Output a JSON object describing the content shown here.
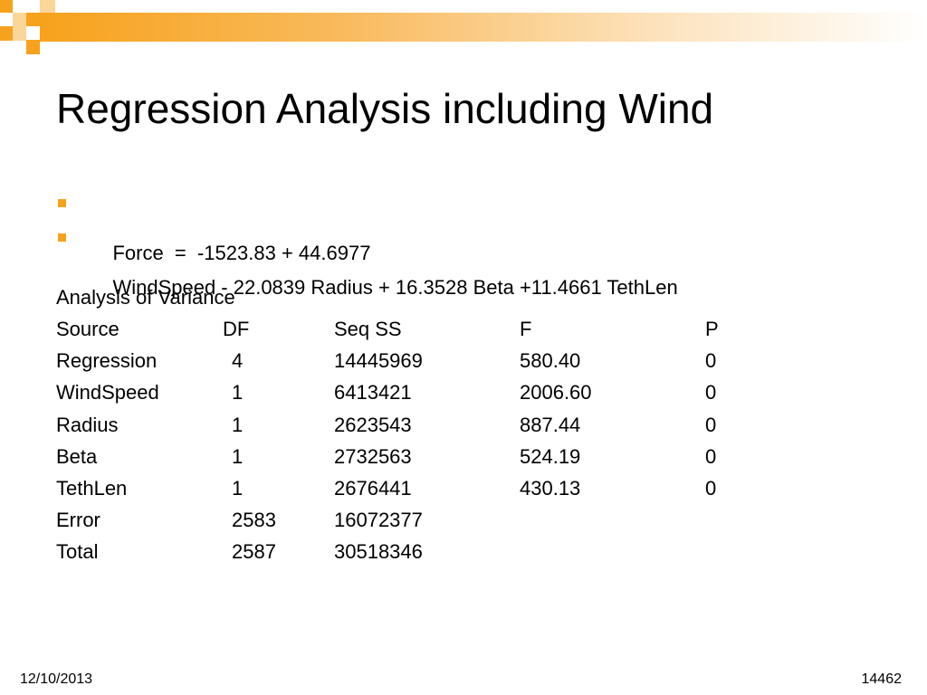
{
  "slide": {
    "title": "Regression Analysis including Wind",
    "bullets": [
      "Force  =  -1523.83 + 44.6977",
      "WindSpeed - 22.0839 Radius + 16.3528 Beta +11.4661 TethLen"
    ],
    "anova": {
      "heading": "Analysis of Variance",
      "columns": [
        "Source",
        "DF",
        "Seq SS",
        "F",
        "P"
      ],
      "rows": [
        [
          "Regression",
          "4",
          "14445969",
          "580.40",
          "0"
        ],
        [
          "WindSpeed",
          "1",
          "6413421",
          "2006.60",
          "0"
        ],
        [
          "Radius",
          "1",
          "2623543",
          "887.44",
          "0"
        ],
        [
          "Beta",
          "1",
          "2732563",
          "524.19",
          "0"
        ],
        [
          "TethLen",
          "1",
          "2676441",
          "430.13",
          "0"
        ],
        [
          "Error",
          "2583",
          "16072377",
          "",
          ""
        ],
        [
          "Total",
          "2587",
          "30518346",
          "",
          ""
        ]
      ]
    },
    "footer": {
      "date": "12/10/2013",
      "number": "14462"
    }
  },
  "theme": {
    "accent": "#f7a21c",
    "accent_light": "#fbd699"
  }
}
